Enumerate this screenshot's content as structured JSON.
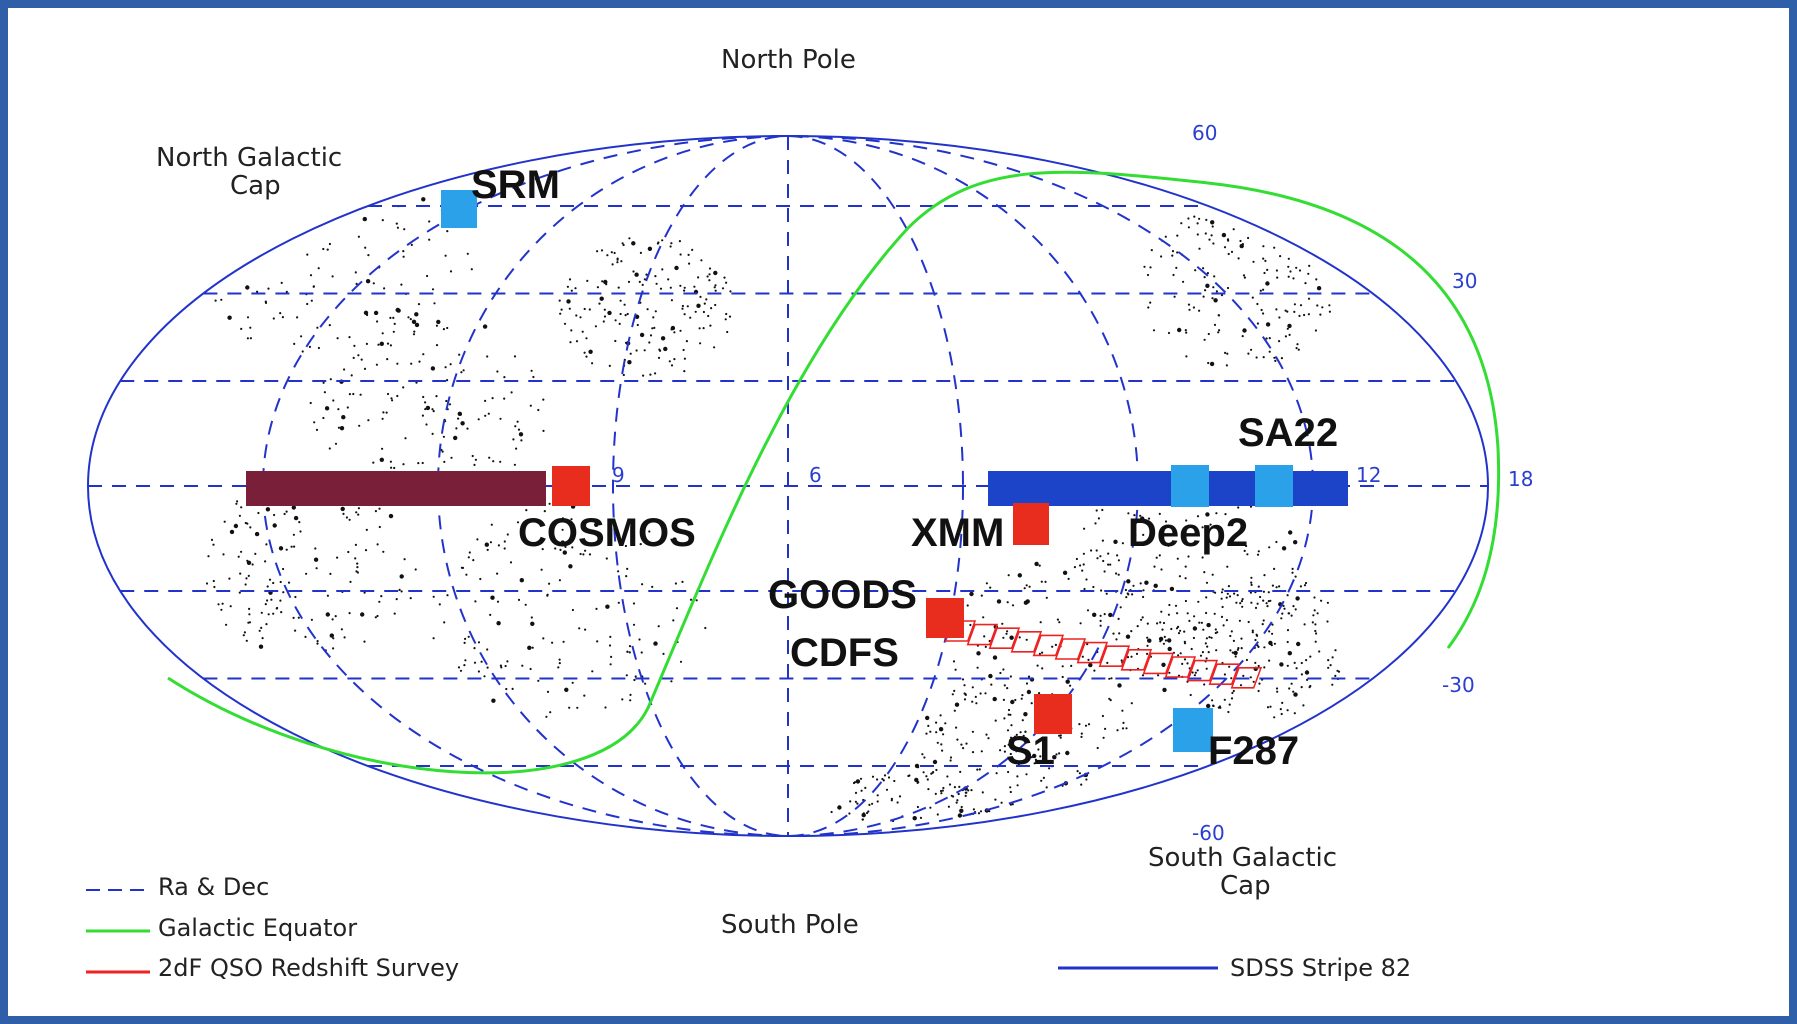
{
  "projection": {
    "type": "Aitoff/Hammer all-sky map",
    "frame_color": "#2f5fa8",
    "grid_color": "#2233cc",
    "galactic_equator_color": "#33dd33",
    "survey_color": "#ee2222"
  },
  "labels": {
    "north_pole": "North Pole",
    "south_pole": "South Pole",
    "north_galactic_cap_line1": "North Galactic",
    "north_galactic_cap_line2": "Cap",
    "south_galactic_cap_line1": "South Galactic",
    "south_galactic_cap_line2": "Cap"
  },
  "ticks": {
    "ra": [
      "9",
      "6",
      "12"
    ],
    "dec": [
      "60",
      "30",
      "18",
      "-30",
      "-60"
    ]
  },
  "fields": {
    "srm": {
      "label": "SRM",
      "color": "#2aa1e8"
    },
    "cosmos": {
      "label": "COSMOS",
      "color": "#e82d1e"
    },
    "xmm": {
      "label": "XMM",
      "color": "#e82d1e"
    },
    "deep2": {
      "label": "Deep2",
      "color": "#2aa1e8"
    },
    "sa22": {
      "label": "SA22",
      "color": "#2aa1e8"
    },
    "goods": {
      "label": "GOODS",
      "color": "#e82d1e"
    },
    "cdfs": {
      "label": "CDFS"
    },
    "s1": {
      "label": "S1",
      "color": "#e82d1e"
    },
    "f287": {
      "label": "F287",
      "color": "#2aa1e8"
    }
  },
  "stripe82": {
    "west_color": "#7a1f3a",
    "east_color": "#1c44c9"
  },
  "legend": {
    "ra_dec": "Ra & Dec",
    "galactic_equator": "Galactic Equator",
    "qso_survey": "2dF QSO Redshift Survey",
    "sdss_stripe": "SDSS Stripe 82"
  }
}
